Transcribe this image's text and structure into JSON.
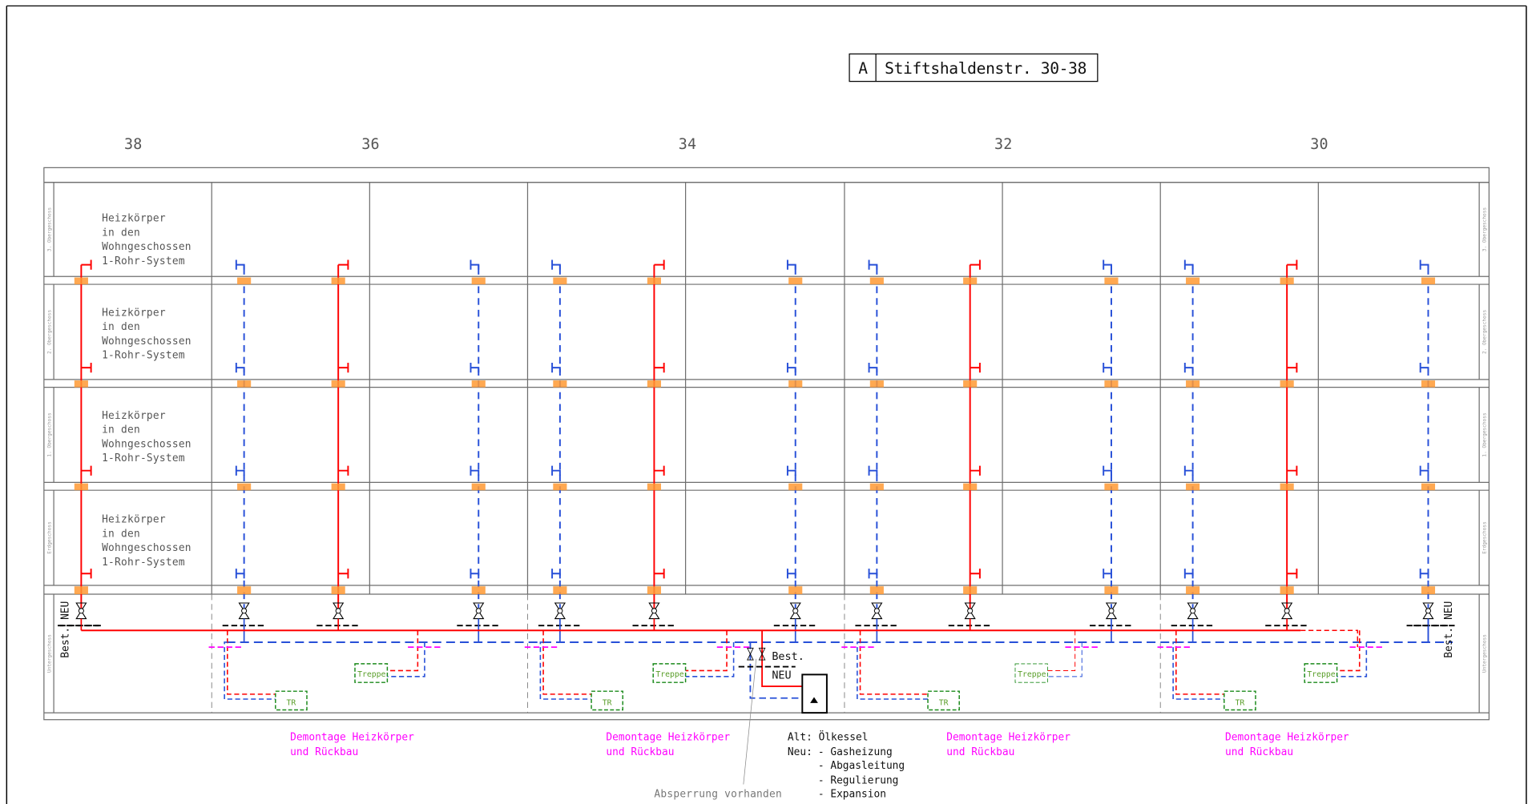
{
  "title": {
    "letter": "A",
    "address": "Stiftshaldenstr. 30-38"
  },
  "house_numbers": [
    "38",
    "36",
    "34",
    "32",
    "30"
  ],
  "floors": [
    "3. Obergeschoss",
    "2. Obergeschoss",
    "1. Obergeschoss",
    "Erdgeschoss",
    "Untergeschoss"
  ],
  "floor_note": [
    "Heizkörper",
    "in den",
    "Wohngeschossen",
    "1-Rohr-System"
  ],
  "side_labels": {
    "new": "NEU",
    "existing": "Best."
  },
  "boiler_labels": {
    "existing": "Best.",
    "new": "NEU"
  },
  "stair_label": "Treppe",
  "tr_label": "TR",
  "demolition_note": [
    "Demontage Heizkörper",
    "und Rückbau"
  ],
  "shutoff_note": "Absperrung vorhanden",
  "boiler_note": {
    "old": "Alt: Ölkessel",
    "new_label": "Neu:",
    "items": [
      "- Gasheizung",
      "- Abgasleitung",
      "- Regulierung",
      "- Expansion"
    ]
  },
  "colors": {
    "supply": "#ff0000",
    "return": "#2850d8",
    "sleeve": "#ff9933",
    "removal": "#ff00ff",
    "stair_box": "#1a8a1a",
    "grid": "#6e6e6e"
  },
  "icons": [
    "valve-icon",
    "boiler-icon",
    "pipe-sleeve-icon",
    "radiator-connection-icon"
  ]
}
